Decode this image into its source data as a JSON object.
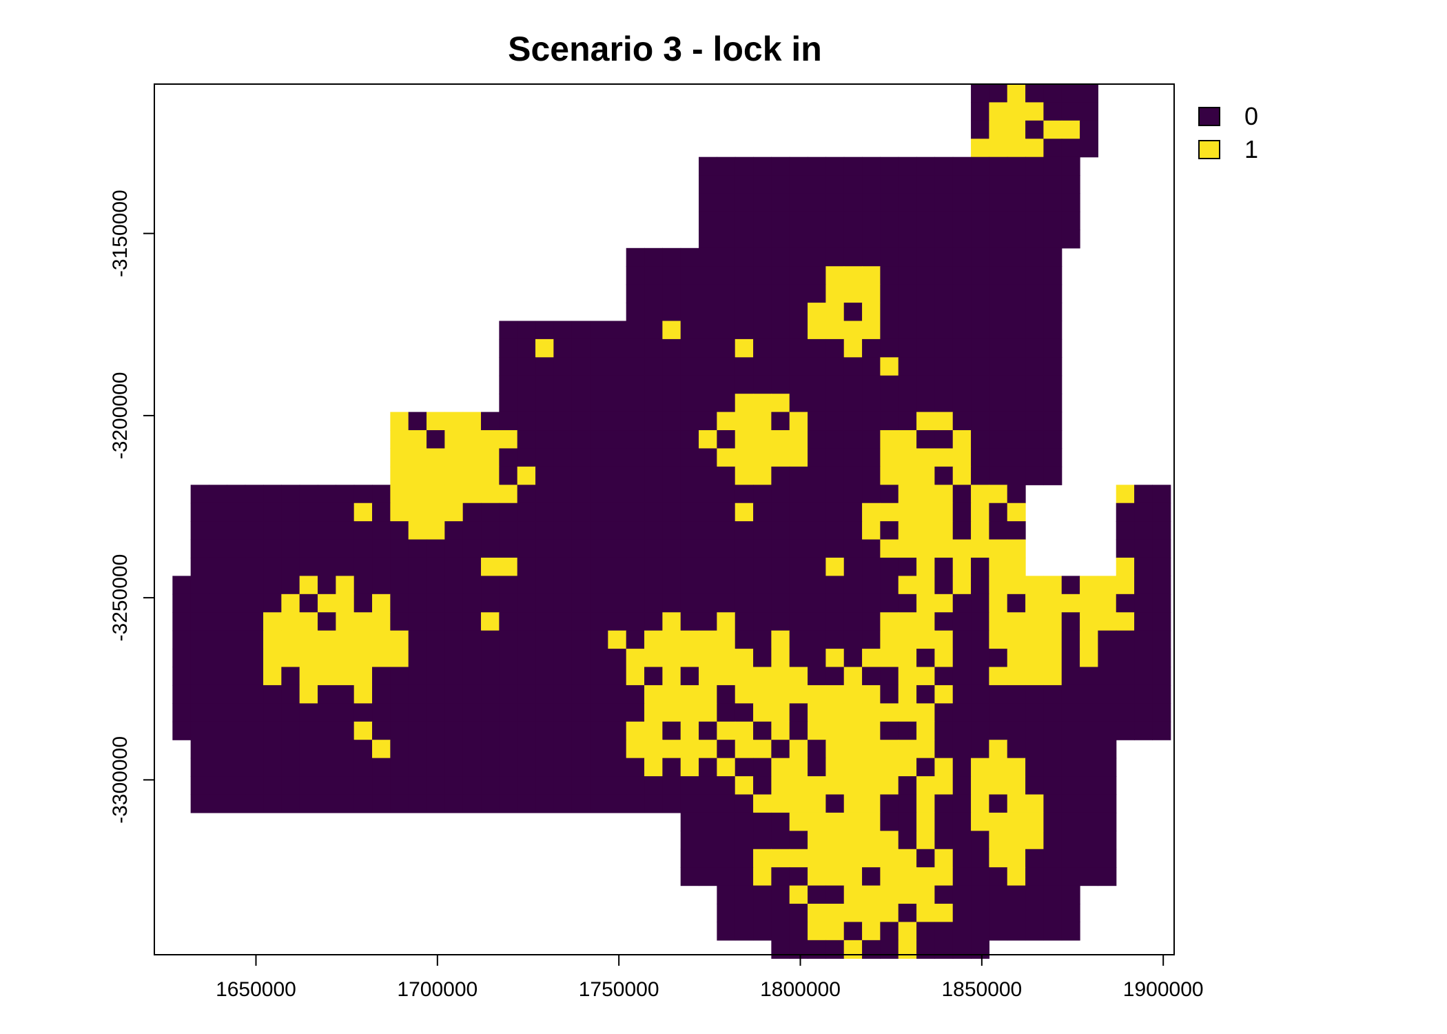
{
  "title": "Scenario 3 - lock in",
  "colors": {
    "value_0": "#360143",
    "value_1": "#FBE420",
    "frame": "#000000"
  },
  "legend": [
    {
      "label": "0",
      "color": "#360143"
    },
    {
      "label": "1",
      "color": "#FBE420"
    }
  ],
  "chart_data": {
    "type": "heatmap",
    "title": "Scenario 3 - lock in",
    "xlabel": "",
    "ylabel": "",
    "xlim": [
      1622000,
      1903000
    ],
    "ylim": [
      -3348000,
      -3109000
    ],
    "x_ticks": [
      1650000,
      1700000,
      1750000,
      1800000,
      1850000,
      1900000
    ],
    "y_ticks": [
      -3150000,
      -3200000,
      -3250000,
      -3300000
    ],
    "x_tick_labels": [
      "1650000",
      "1700000",
      "1750000",
      "1800000",
      "1850000",
      "1900000"
    ],
    "y_tick_labels": [
      "-3150000",
      "-3200000",
      "-3250000",
      "-3300000"
    ],
    "cell_size": 5000,
    "x_origin": 1622000,
    "y_top": -3109000,
    "legend_placement": "top-right",
    "grid": false,
    "rows": [
      "..................................................................................................................................................",
      ".......................................................................................................................",
      "......................................................................................................................................................................................................................................................................................................................................................................................................................................................................................................",
      "........................................................................................................................................................................................................................................................................................................................................................................................................................................................................................................",
      "........................................................................................................................................................................................................................................................................................................................................................................................................................................................................................................",
      "........................................................................................................................................................................................................................................................................................................................................................................................................................................................................................................................................................"
    ]
  }
}
